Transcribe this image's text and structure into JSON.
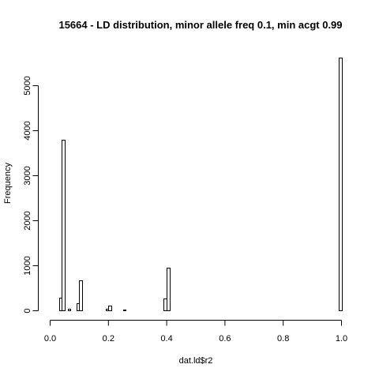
{
  "chart_data": {
    "type": "bar",
    "title": "15664 - LD distribution, minor allele freq 0.1, min acgt 0.99",
    "xlabel": "dat.ld$r2",
    "ylabel": "Frequency",
    "bin_width": 0.01,
    "xlim": [
      0,
      1
    ],
    "ylim": [
      0,
      5600
    ],
    "x_ticks": [
      0.0,
      0.2,
      0.4,
      0.6,
      0.8,
      1.0
    ],
    "x_tick_labels": [
      "0.0",
      "0.2",
      "0.4",
      "0.6",
      "0.8",
      "1.0"
    ],
    "y_ticks": [
      0,
      1000,
      2000,
      3000,
      4000,
      5000
    ],
    "y_tick_labels": [
      "0",
      "1000",
      "2000",
      "3000",
      "4000",
      "5000"
    ],
    "bins": [
      {
        "x0": 0.03,
        "x1": 0.04,
        "count": 290
      },
      {
        "x0": 0.04,
        "x1": 0.05,
        "count": 3790
      },
      {
        "x0": 0.06,
        "x1": 0.07,
        "count": 40
      },
      {
        "x0": 0.09,
        "x1": 0.1,
        "count": 170
      },
      {
        "x0": 0.1,
        "x1": 0.11,
        "count": 680
      },
      {
        "x0": 0.19,
        "x1": 0.2,
        "count": 40
      },
      {
        "x0": 0.2,
        "x1": 0.21,
        "count": 110
      },
      {
        "x0": 0.25,
        "x1": 0.26,
        "count": 30
      },
      {
        "x0": 0.39,
        "x1": 0.4,
        "count": 270
      },
      {
        "x0": 0.4,
        "x1": 0.41,
        "count": 950
      },
      {
        "x0": 0.5,
        "x1": 0.51,
        "count": 10
      },
      {
        "x0": 0.99,
        "x1": 1.0,
        "count": 5620
      }
    ],
    "legend": false,
    "grid": false
  }
}
